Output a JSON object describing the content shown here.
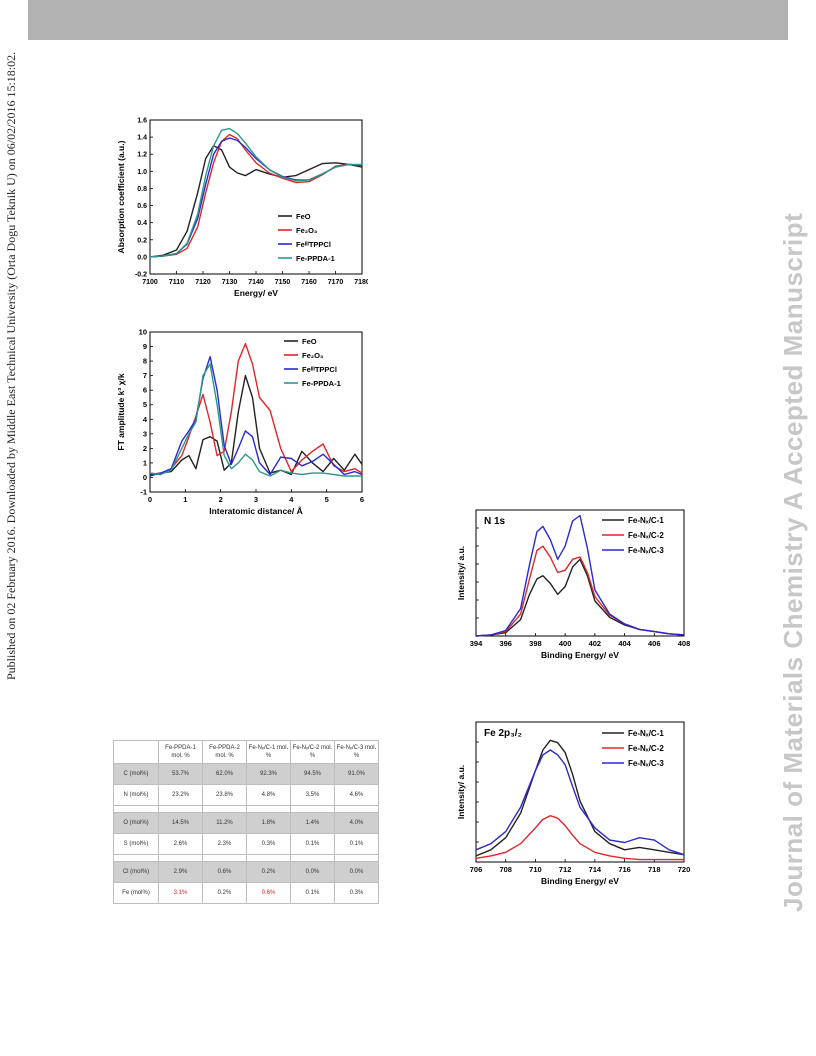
{
  "side_note": "Published on 02 February 2016. Downloaded by Middle East Technical University (Orta Dogu Teknik U) on 06/02/2016 15:18:02.",
  "watermark": "Journal of Materials Chemistry A Accepted Manuscript",
  "colors": {
    "FeO": "#222222",
    "Fe2O3": "#e0262a",
    "FeIIITPPCl": "#2a2ad0",
    "FePPDA1": "#2a9a8a",
    "FeNxC1": "#222222",
    "FeNxC2": "#e0262a",
    "FeNxC3": "#2a2ad0"
  },
  "chart_data": [
    {
      "type": "line",
      "xlabel": "Energy/ eV",
      "ylabel": "Absorption coefficient (a.u.)",
      "xlim": [
        7100,
        7180
      ],
      "ylim": [
        -0.2,
        1.6
      ],
      "xticks": [
        7100,
        7110,
        7120,
        7130,
        7140,
        7150,
        7160,
        7170,
        7180
      ],
      "yticks": [
        -0.2,
        0.0,
        0.2,
        0.4,
        0.6,
        0.8,
        1.0,
        1.2,
        1.4,
        1.6
      ],
      "ytick_labels": [
        "-0.2",
        "0.0",
        "0.2",
        "0.4",
        "0.6",
        "0.8",
        "1.0",
        "1.2",
        "1.4",
        "1.6"
      ],
      "legend": [
        "FeO",
        "Fe₂O₃",
        "FeᴵᴵᴵTPPCl",
        "Fe-PPDA-1"
      ],
      "series": [
        {
          "name": "FeO",
          "color_key": "FeO",
          "x": [
            7100,
            7105,
            7110,
            7114,
            7118,
            7121,
            7124,
            7127,
            7130,
            7133,
            7136,
            7140,
            7145,
            7150,
            7155,
            7160,
            7165,
            7170,
            7175,
            7180
          ],
          "y": [
            0.0,
            0.02,
            0.08,
            0.3,
            0.75,
            1.15,
            1.3,
            1.25,
            1.05,
            0.98,
            0.95,
            1.02,
            0.97,
            0.93,
            0.95,
            1.02,
            1.09,
            1.1,
            1.08,
            1.05
          ]
        },
        {
          "name": "Fe2O3",
          "color_key": "Fe2O3",
          "x": [
            7100,
            7105,
            7110,
            7114,
            7118,
            7121,
            7124,
            7127,
            7130,
            7133,
            7136,
            7140,
            7145,
            7150,
            7155,
            7160,
            7165,
            7170,
            7175,
            7180
          ],
          "y": [
            0.0,
            0.01,
            0.03,
            0.1,
            0.35,
            0.75,
            1.1,
            1.35,
            1.43,
            1.38,
            1.25,
            1.1,
            0.98,
            0.92,
            0.87,
            0.88,
            0.96,
            1.06,
            1.08,
            1.07
          ]
        },
        {
          "name": "FeIIITPPCl",
          "color_key": "FeIIITPPCl",
          "x": [
            7100,
            7105,
            7110,
            7114,
            7118,
            7121,
            7124,
            7127,
            7130,
            7133,
            7136,
            7140,
            7145,
            7150,
            7155,
            7160,
            7165,
            7170,
            7175,
            7180
          ],
          "y": [
            0.0,
            0.01,
            0.04,
            0.15,
            0.45,
            0.85,
            1.2,
            1.35,
            1.39,
            1.36,
            1.28,
            1.15,
            1.02,
            0.94,
            0.9,
            0.9,
            0.97,
            1.05,
            1.08,
            1.07
          ]
        },
        {
          "name": "Fe-PPDA-1",
          "color_key": "FePPDA1",
          "x": [
            7100,
            7105,
            7110,
            7114,
            7118,
            7121,
            7124,
            7127,
            7130,
            7133,
            7136,
            7140,
            7145,
            7150,
            7155,
            7160,
            7165,
            7170,
            7175,
            7180
          ],
          "y": [
            0.0,
            0.01,
            0.04,
            0.16,
            0.5,
            0.95,
            1.3,
            1.48,
            1.5,
            1.44,
            1.33,
            1.17,
            1.02,
            0.93,
            0.89,
            0.9,
            0.97,
            1.05,
            1.08,
            1.08
          ]
        }
      ]
    },
    {
      "type": "line",
      "xlabel": "Interatomic distance/ Å",
      "ylabel": "FT amplitude k³ χ/k",
      "xlim": [
        0,
        6
      ],
      "ylim": [
        -1,
        10
      ],
      "xticks": [
        0,
        1,
        2,
        3,
        4,
        5,
        6
      ],
      "yticks": [
        -1,
        0,
        1,
        2,
        3,
        4,
        5,
        6,
        7,
        8,
        9,
        10
      ],
      "legend": [
        "FeO",
        "Fe₂O₃",
        "FeᴵᴵᴵTPPCl",
        "Fe-PPDA-1"
      ],
      "series": [
        {
          "name": "FeO",
          "color_key": "FeO",
          "x": [
            0,
            0.3,
            0.6,
            0.9,
            1.1,
            1.3,
            1.5,
            1.7,
            1.9,
            2.1,
            2.3,
            2.5,
            2.7,
            2.9,
            3.1,
            3.4,
            3.7,
            4.0,
            4.3,
            4.6,
            4.9,
            5.2,
            5.5,
            5.8,
            6.0
          ],
          "y": [
            0.2,
            0.3,
            0.4,
            1.2,
            1.5,
            0.6,
            2.6,
            2.8,
            2.5,
            0.5,
            1.0,
            4.5,
            7.0,
            5.5,
            2.0,
            0.3,
            0.5,
            0.2,
            1.8,
            1.0,
            0.4,
            1.3,
            0.5,
            1.6,
            0.9
          ]
        },
        {
          "name": "Fe2O3",
          "color_key": "Fe2O3",
          "x": [
            0,
            0.3,
            0.6,
            0.9,
            1.1,
            1.3,
            1.5,
            1.7,
            1.9,
            2.1,
            2.3,
            2.5,
            2.7,
            2.9,
            3.1,
            3.4,
            3.7,
            4.0,
            4.3,
            4.6,
            4.9,
            5.2,
            5.5,
            5.8,
            6.0
          ],
          "y": [
            0.3,
            0.2,
            0.6,
            1.5,
            2.8,
            4.2,
            5.7,
            3.8,
            1.5,
            1.8,
            4.5,
            8.0,
            9.2,
            7.8,
            5.5,
            4.6,
            2.0,
            0.4,
            1.2,
            1.8,
            2.3,
            0.8,
            0.4,
            0.6,
            0.3
          ]
        },
        {
          "name": "FeIIITPPCl",
          "color_key": "FeIIITPPCl",
          "x": [
            0,
            0.3,
            0.6,
            0.9,
            1.1,
            1.3,
            1.5,
            1.7,
            1.9,
            2.1,
            2.3,
            2.5,
            2.7,
            2.9,
            3.1,
            3.4,
            3.7,
            4.0,
            4.3,
            4.6,
            4.9,
            5.2,
            5.5,
            5.8,
            6.0
          ],
          "y": [
            0.1,
            0.3,
            0.6,
            2.5,
            3.2,
            4.0,
            6.8,
            8.3,
            6.0,
            2.2,
            0.9,
            2.0,
            3.2,
            2.8,
            1.0,
            0.2,
            1.4,
            1.3,
            0.8,
            1.1,
            1.6,
            0.9,
            0.2,
            0.4,
            0.2
          ]
        },
        {
          "name": "Fe-PPDA-1",
          "color_key": "FePPDA1",
          "x": [
            0,
            0.3,
            0.6,
            0.9,
            1.1,
            1.3,
            1.5,
            1.7,
            1.9,
            2.1,
            2.3,
            2.5,
            2.7,
            2.9,
            3.1,
            3.4,
            3.7,
            4.0,
            4.3,
            4.6,
            4.9,
            5.2,
            5.5,
            5.8,
            6.0
          ],
          "y": [
            0.3,
            0.2,
            0.5,
            2.0,
            3.0,
            3.8,
            7.0,
            7.8,
            5.0,
            1.5,
            0.6,
            1.0,
            1.6,
            1.2,
            0.4,
            0.1,
            0.5,
            0.3,
            0.2,
            0.3,
            0.3,
            0.2,
            0.1,
            0.1,
            0.1
          ]
        }
      ]
    },
    {
      "type": "line",
      "title": "N 1s",
      "xlabel": "Binding Energy/ eV",
      "ylabel": "Intensity/ a.u.",
      "xlim": [
        394,
        408
      ],
      "xticks": [
        394,
        396,
        398,
        400,
        402,
        404,
        406,
        408
      ],
      "legend": [
        "Fe-Nₓ/C-1",
        "Fe-Nₓ/C-2",
        "Fe-Nₓ/C-3"
      ],
      "series": [
        {
          "name": "Fe-Nx/C-1",
          "color_key": "FeNxC1",
          "x": [
            394,
            395,
            396,
            397,
            397.6,
            398.1,
            398.5,
            399,
            399.5,
            400,
            400.5,
            401,
            401.5,
            402,
            403,
            404,
            405,
            406,
            407,
            408
          ],
          "y": [
            0,
            0.01,
            0.03,
            0.15,
            0.38,
            0.52,
            0.55,
            0.48,
            0.38,
            0.45,
            0.63,
            0.7,
            0.55,
            0.32,
            0.17,
            0.1,
            0.06,
            0.04,
            0.02,
            0.01
          ]
        },
        {
          "name": "Fe-Nx/C-2",
          "color_key": "FeNxC2",
          "x": [
            394,
            395,
            396,
            397,
            397.6,
            398.1,
            398.5,
            399,
            399.5,
            400,
            400.5,
            401,
            401.5,
            402,
            403,
            404,
            405,
            406,
            407,
            408
          ],
          "y": [
            0,
            0.01,
            0.04,
            0.2,
            0.52,
            0.78,
            0.82,
            0.72,
            0.58,
            0.6,
            0.7,
            0.72,
            0.58,
            0.36,
            0.19,
            0.11,
            0.06,
            0.04,
            0.02,
            0.01
          ]
        },
        {
          "name": "Fe-Nx/C-3",
          "color_key": "FeNxC3",
          "x": [
            394,
            395,
            396,
            397,
            397.6,
            398.1,
            398.5,
            399,
            399.5,
            400,
            400.5,
            401,
            401.5,
            402,
            403,
            404,
            405,
            406,
            407,
            408
          ],
          "y": [
            0,
            0.01,
            0.05,
            0.25,
            0.65,
            0.95,
            1.0,
            0.88,
            0.7,
            0.82,
            1.05,
            1.1,
            0.8,
            0.42,
            0.2,
            0.11,
            0.06,
            0.04,
            0.02,
            0.01
          ]
        }
      ]
    },
    {
      "type": "line",
      "title": "Fe 2p₃/₂",
      "xlabel": "Binding Energy/ eV",
      "ylabel": "Intensity/ a.u.",
      "xlim": [
        706,
        720
      ],
      "xticks": [
        706,
        708,
        710,
        712,
        714,
        716,
        718,
        720
      ],
      "legend": [
        "Fe-Nₓ/C-1",
        "Fe-Nₓ/C-2",
        "Fe-Nₓ/C-3"
      ],
      "series": [
        {
          "name": "Fe-Nx/C-1",
          "color_key": "FeNxC1",
          "x": [
            706,
            707,
            708,
            709,
            710,
            710.5,
            711,
            711.5,
            712,
            712.5,
            713,
            714,
            715,
            716,
            717,
            718,
            719,
            720
          ],
          "y": [
            0.05,
            0.1,
            0.2,
            0.4,
            0.75,
            0.92,
            1.0,
            0.98,
            0.9,
            0.72,
            0.5,
            0.25,
            0.15,
            0.1,
            0.12,
            0.1,
            0.08,
            0.06
          ]
        },
        {
          "name": "Fe-Nx/C-2",
          "color_key": "FeNxC2",
          "x": [
            706,
            707,
            708,
            709,
            710,
            710.5,
            711,
            711.5,
            712,
            712.5,
            713,
            714,
            715,
            716,
            717,
            718,
            719,
            720
          ],
          "y": [
            0.03,
            0.05,
            0.08,
            0.15,
            0.28,
            0.35,
            0.38,
            0.36,
            0.3,
            0.22,
            0.15,
            0.08,
            0.05,
            0.03,
            0.02,
            0.02,
            0.02,
            0.02
          ]
        },
        {
          "name": "Fe-Nx/C-3",
          "color_key": "FeNxC3",
          "x": [
            706,
            707,
            708,
            709,
            710,
            710.5,
            711,
            711.5,
            712,
            712.5,
            713,
            714,
            715,
            716,
            717,
            718,
            719,
            720
          ],
          "y": [
            0.1,
            0.15,
            0.25,
            0.45,
            0.75,
            0.88,
            0.92,
            0.88,
            0.8,
            0.62,
            0.45,
            0.28,
            0.18,
            0.16,
            0.2,
            0.18,
            0.1,
            0.06
          ]
        }
      ]
    },
    {
      "type": "table",
      "columns": [
        "",
        "Fe-PPDA-1 mol. %",
        "Fe-PPDA-2 mol. %",
        "Fe-Nₓ/C-1 mol. %",
        "Fe-Nₓ/C-2 mol. %",
        "Fe-Nₓ/C-3 mol. %"
      ],
      "rows": [
        {
          "label": "C (mol%)",
          "values": [
            "53.7%",
            "62.0%",
            "92.3%",
            "94.5%",
            "91.0%"
          ],
          "shaded": true
        },
        {
          "label": "N (mol%)",
          "values": [
            "23.2%",
            "23.8%",
            "4.8%",
            "3.5%",
            "4.6%"
          ],
          "shaded": false
        },
        {
          "label": "O (mol%)",
          "values": [
            "14.5%",
            "11.2%",
            "1.8%",
            "1.4%",
            "4.0%"
          ],
          "shaded": true
        },
        {
          "label": "S (mol%)",
          "values": [
            "2.6%",
            "2.3%",
            "0.3%",
            "0.1%",
            "0.1%"
          ],
          "shaded": false
        },
        {
          "label": "Cl (mol%)",
          "values": [
            "2.9%",
            "0.6%",
            "0.2%",
            "0.0%",
            "0.0%"
          ],
          "shaded": true
        },
        {
          "label": "Fe (mol%)",
          "values": [
            "3.1%",
            "0.2%",
            "0.6%",
            "0.1%",
            "0.3%"
          ],
          "shaded": false
        }
      ]
    }
  ]
}
